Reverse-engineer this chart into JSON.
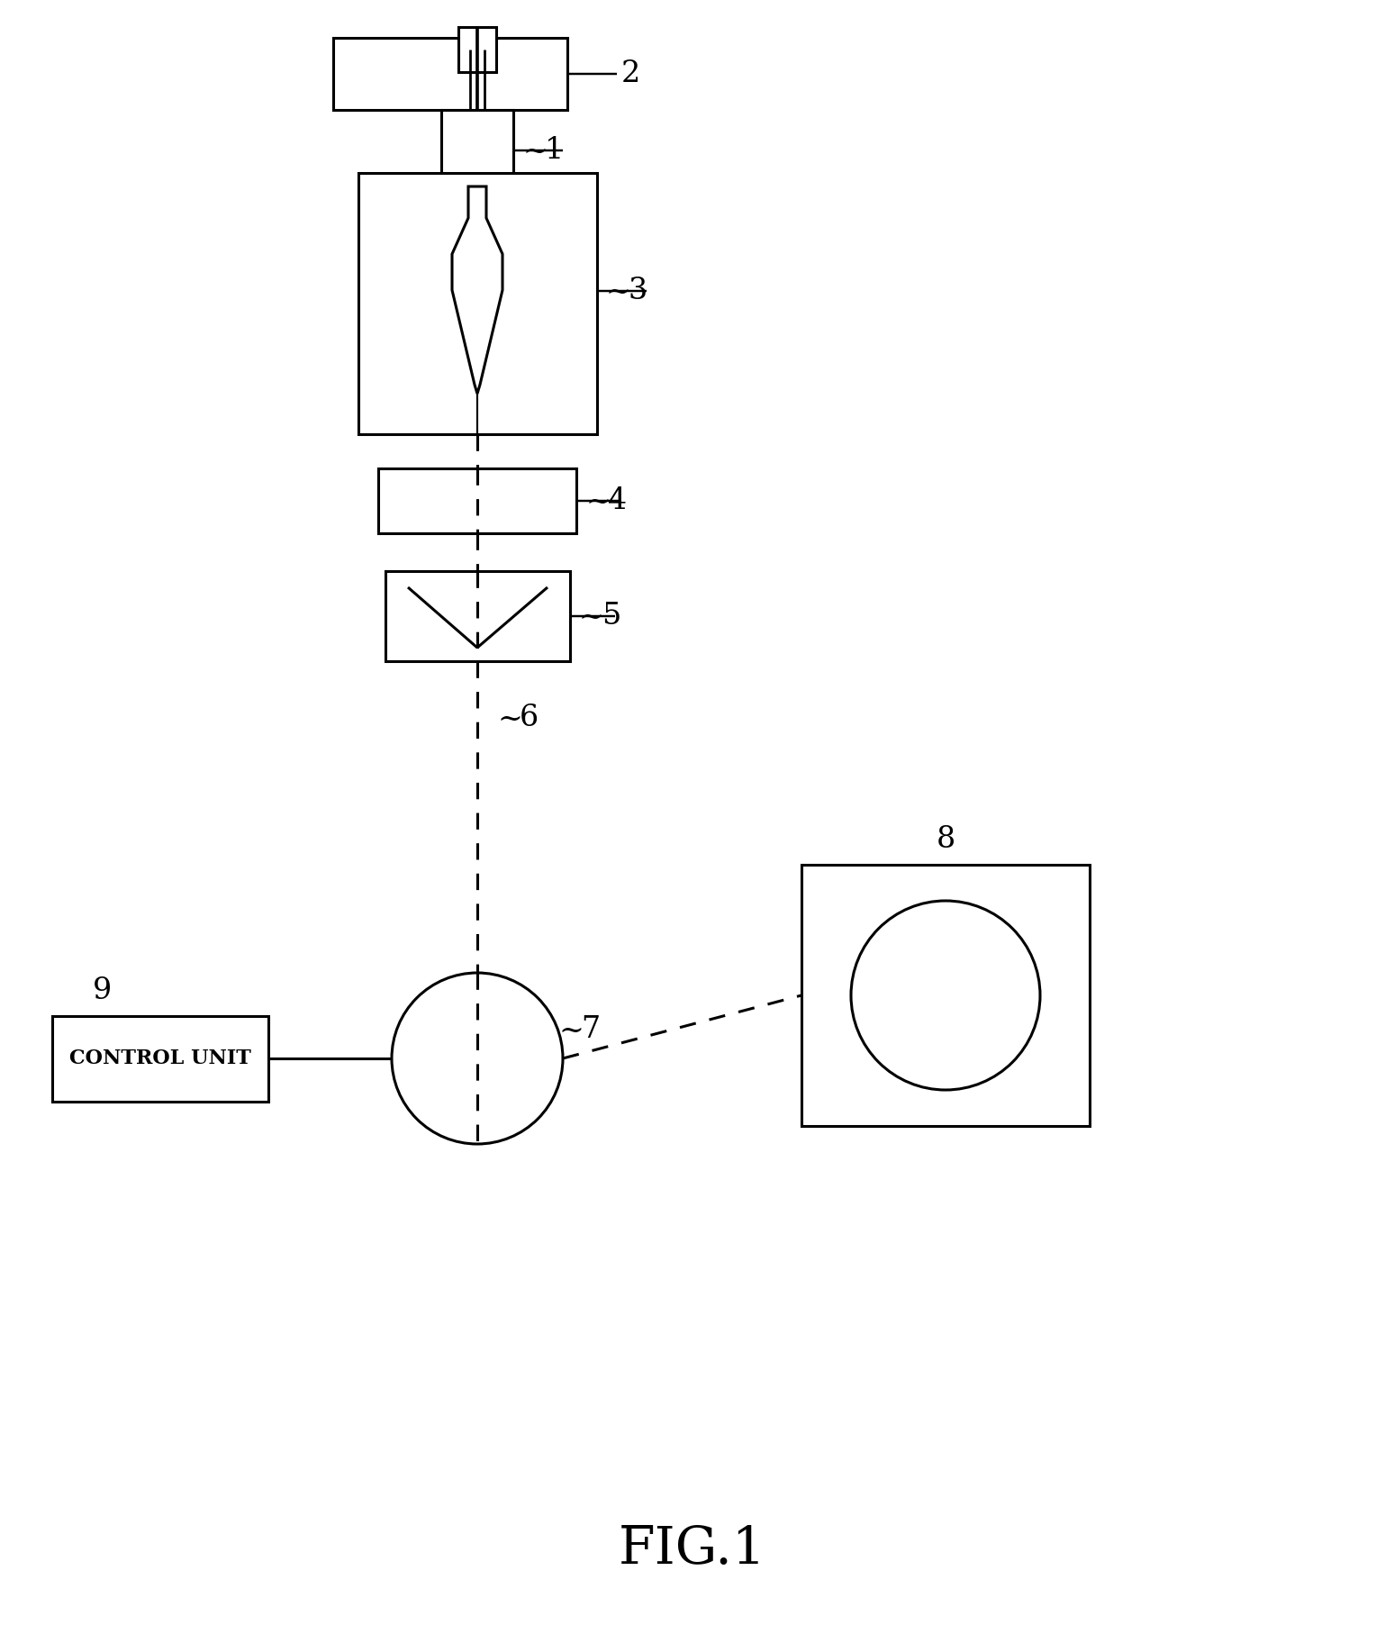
{
  "bg_color": "#ffffff",
  "line_color": "#000000",
  "fig_label": "FIG.1",
  "fig_label_fontsize": 42,
  "label_fontsize": 24,
  "lw": 2.2
}
